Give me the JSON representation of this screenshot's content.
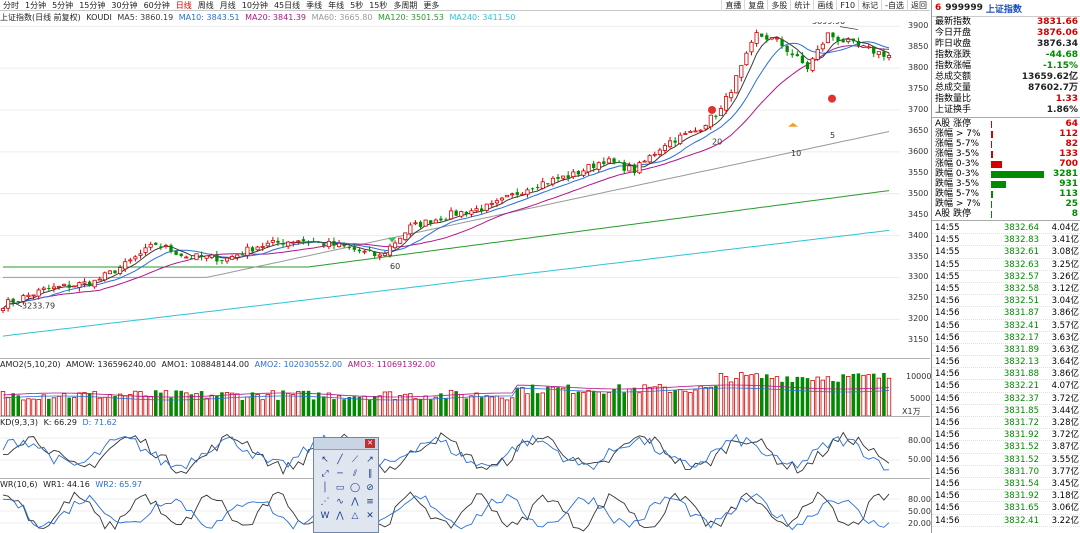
{
  "toolbar": {
    "left": [
      "分时",
      "1分钟",
      "5分钟",
      "15分钟",
      "30分钟",
      "60分钟",
      "日线",
      "周线",
      "月线",
      "10分钟",
      "45日线",
      "季线",
      "年线",
      "5秒",
      "15秒",
      "多周期",
      "更多"
    ],
    "active": "日线",
    "right": [
      "复盘",
      "多股",
      "统计",
      "画线",
      "F10",
      "标记",
      "-自选",
      "返回"
    ],
    "right_first": "直播"
  },
  "main_legend": {
    "title": "上证指数(日线 前复权)",
    "indicator": "KOUDI",
    "ma5": "MA5: 3860.19",
    "ma10": "MA10: 3843.51",
    "ma20": "MA20: 3841.39",
    "ma60": "MA60: 3665.80",
    "ma120": "MA120: 3501.53",
    "ma240": "MA240: 3411.50"
  },
  "main_chart": {
    "y_ticks": [
      "3900",
      "3850",
      "3800",
      "3750",
      "3700",
      "3650",
      "3600",
      "3550",
      "3500",
      "3450",
      "3400",
      "3350",
      "3300",
      "3250",
      "3200",
      "3150"
    ],
    "high_label": "3899.96",
    "low_label": "3233.79",
    "marks": [
      "60",
      "20",
      "10",
      "5"
    ]
  },
  "vol_legend": {
    "title": "AMO2(5,10,20)",
    "amow": "AMOW: 136596240.00",
    "amo1": "AMO1: 108848144.00",
    "amo2": "AMO2: 102030552.00",
    "amo3": "AMO3: 110691392.00",
    "y_ticks": [
      "10000",
      "5000"
    ],
    "unit": "X1万"
  },
  "kd_legend": {
    "title": "KD(9,3,3)",
    "k": "K: 66.29",
    "d": "D: 71.62",
    "y_ticks": [
      "80.00",
      "50.00"
    ]
  },
  "wr_legend": {
    "title": "WR(10,6)",
    "wr1": "WR1: 44.16",
    "wr2": "WR2: 65.97",
    "y_ticks": [
      "80.00",
      "50.00",
      "20.00"
    ]
  },
  "panel": {
    "header": {
      "g": "6",
      "code": "999999",
      "name": "上证指数"
    },
    "quotes": [
      {
        "k": "最新指数",
        "v": "3831.66",
        "c": "red"
      },
      {
        "k": "今日开盘",
        "v": "3876.06",
        "c": "red"
      },
      {
        "k": "昨日收盘",
        "v": "3876.34",
        "c": ""
      },
      {
        "k": "指数涨跌",
        "v": "-44.68",
        "c": "green"
      },
      {
        "k": "指数涨幅",
        "v": "-1.15%",
        "c": "green"
      },
      {
        "k": "总成交额",
        "v": "13659.62亿",
        "c": ""
      },
      {
        "k": "总成交量",
        "v": "87602.7万",
        "c": ""
      },
      {
        "k": "指数量比",
        "v": "1.33",
        "c": "red"
      },
      {
        "k": "上证换手",
        "v": "1.86%",
        "c": ""
      }
    ],
    "breadth": [
      {
        "k": "A股 涨停",
        "v": "64",
        "pct": 0.02,
        "c": "red"
      },
      {
        "k": "涨幅 > 7%",
        "v": "112",
        "pct": 0.03,
        "c": "red"
      },
      {
        "k": "涨幅 5-7%",
        "v": "82",
        "pct": 0.025,
        "c": "red"
      },
      {
        "k": "涨幅 3-5%",
        "v": "133",
        "pct": 0.04,
        "c": "red"
      },
      {
        "k": "涨幅 0-3%",
        "v": "700",
        "pct": 0.2,
        "c": "red"
      },
      {
        "k": "跌幅 0-3%",
        "v": "3281",
        "pct": 1.0,
        "c": "green"
      },
      {
        "k": "跌幅 3-5%",
        "v": "931",
        "pct": 0.28,
        "c": "green"
      },
      {
        "k": "跌幅 5-7%",
        "v": "113",
        "pct": 0.03,
        "c": "green"
      },
      {
        "k": "跌幅 > 7%",
        "v": "25",
        "pct": 0.01,
        "c": "green"
      },
      {
        "k": "A股 跌停",
        "v": "8",
        "pct": 0.005,
        "c": "green"
      }
    ],
    "ticks": [
      {
        "t": "14:55",
        "p": "3832.64",
        "a": "4.04亿"
      },
      {
        "t": "14:55",
        "p": "3832.83",
        "a": "3.41亿"
      },
      {
        "t": "14:55",
        "p": "3832.61",
        "a": "3.08亿"
      },
      {
        "t": "14:55",
        "p": "3832.63",
        "a": "3.25亿"
      },
      {
        "t": "14:55",
        "p": "3832.57",
        "a": "3.26亿"
      },
      {
        "t": "14:55",
        "p": "3832.58",
        "a": "3.12亿"
      },
      {
        "t": "14:56",
        "p": "3832.51",
        "a": "3.04亿"
      },
      {
        "t": "14:56",
        "p": "3831.87",
        "a": "3.86亿"
      },
      {
        "t": "14:56",
        "p": "3832.41",
        "a": "3.57亿"
      },
      {
        "t": "14:56",
        "p": "3832.17",
        "a": "3.63亿"
      },
      {
        "t": "14:56",
        "p": "3831.89",
        "a": "3.63亿"
      },
      {
        "t": "14:56",
        "p": "3832.13",
        "a": "3.64亿"
      },
      {
        "t": "14:56",
        "p": "3831.88",
        "a": "3.86亿"
      },
      {
        "t": "14:56",
        "p": "3832.21",
        "a": "4.07亿"
      },
      {
        "t": "14:56",
        "p": "3832.37",
        "a": "3.72亿"
      },
      {
        "t": "14:56",
        "p": "3831.85",
        "a": "3.44亿"
      },
      {
        "t": "14:56",
        "p": "3831.72",
        "a": "3.28亿"
      },
      {
        "t": "14:56",
        "p": "3831.92",
        "a": "3.72亿"
      },
      {
        "t": "14:56",
        "p": "3831.52",
        "a": "3.87亿"
      },
      {
        "t": "14:56",
        "p": "3831.52",
        "a": "3.55亿"
      },
      {
        "t": "14:56",
        "p": "3831.70",
        "a": "3.77亿"
      },
      {
        "t": "14:56",
        "p": "3831.54",
        "a": "3.45亿"
      },
      {
        "t": "14:56",
        "p": "3831.92",
        "a": "3.18亿"
      },
      {
        "t": "14:56",
        "p": "3831.65",
        "a": "3.06亿"
      },
      {
        "t": "14:56",
        "p": "3832.41",
        "a": "3.22亿"
      }
    ]
  },
  "colors": {
    "up": "#d40000",
    "down": "#008a00",
    "ma5": "#3a3a3a",
    "ma10": "#2a6fd6",
    "ma20": "#b0168a",
    "ma60": "#9a9a9a",
    "ma120": "#2a9a2a",
    "ma240": "#2ec4d6"
  },
  "palette_icons": [
    "cursor-icon",
    "line-icon",
    "ray-icon",
    "arrow-icon",
    "trend-icon",
    "hline-icon",
    "channel-icon",
    "parallel-icon",
    "vline-icon",
    "rect-icon",
    "circle-icon",
    "cancel-icon",
    "fan-icon",
    "wave-icon",
    "zigzag-icon",
    "fib-icon",
    "w-icon",
    "peak-icon",
    "tri-icon",
    "cross-icon"
  ]
}
